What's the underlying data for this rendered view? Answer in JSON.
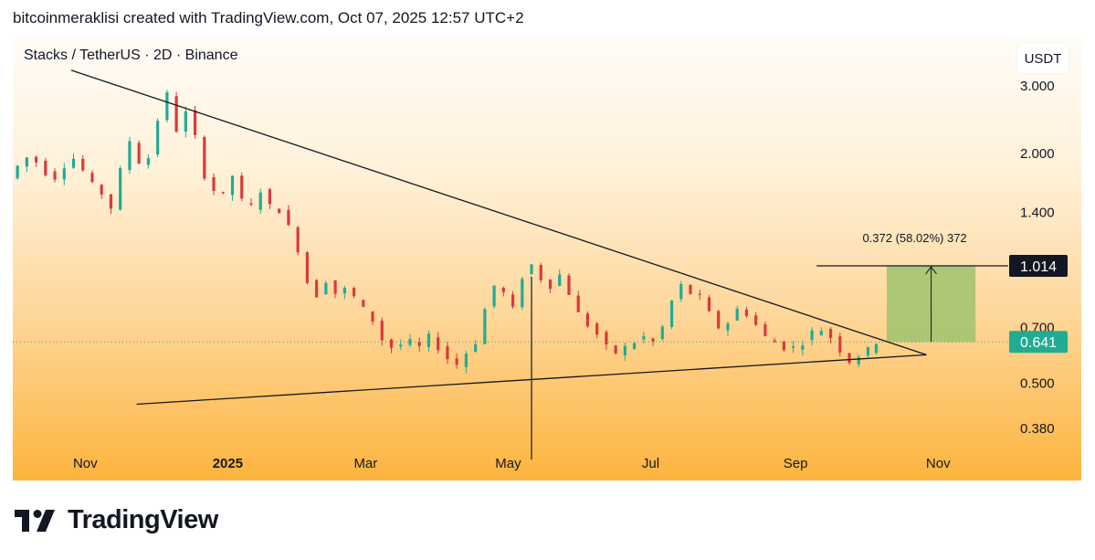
{
  "header": {
    "text": "bitcoinmeraklisi created with TradingView.com, Oct 07, 2025 12:57 UTC+2"
  },
  "symbol": {
    "text": "Stacks / TetherUS · 2D · Binance"
  },
  "currency": {
    "label": "USDT"
  },
  "brand": {
    "name": "TradingView",
    "icon": "tradingview-logo-icon"
  },
  "colors": {
    "up": "#22ab94",
    "down": "#d93a3a",
    "line": "#131722",
    "accent": "#22ab94",
    "measure_fill": "#9ec36d"
  },
  "chart_data": {
    "type": "candlestick",
    "title": "",
    "x_axis": {
      "type": "date",
      "range": [
        "2024-10-01",
        "2025-12-01"
      ],
      "ticks": [
        {
          "label": "Nov",
          "date": "2024-11-01",
          "bold": false
        },
        {
          "label": "2025",
          "date": "2025-01-01",
          "bold": true
        },
        {
          "label": "Mar",
          "date": "2025-03-01",
          "bold": false
        },
        {
          "label": "May",
          "date": "2025-05-01",
          "bold": false
        },
        {
          "label": "Jul",
          "date": "2025-07-01",
          "bold": false
        },
        {
          "label": "Sep",
          "date": "2025-09-01",
          "bold": false
        },
        {
          "label": "Nov",
          "date": "2025-11-01",
          "bold": false
        }
      ]
    },
    "y_axis": {
      "scale": "log",
      "unit": "USDT",
      "range": [
        0.3,
        4.0
      ],
      "ticks": [
        {
          "label": "3.000",
          "value": 3.0
        },
        {
          "label": "2.000",
          "value": 2.0
        },
        {
          "label": "1.400",
          "value": 1.4
        },
        {
          "label": "0.700",
          "value": 0.7
        },
        {
          "label": "0.500",
          "value": 0.5
        },
        {
          "label": "0.380",
          "value": 0.38
        }
      ]
    },
    "close_series": [
      [
        "2024-10-01",
        1.72
      ],
      [
        "2024-10-05",
        1.85
      ],
      [
        "2024-10-09",
        1.95
      ],
      [
        "2024-10-13",
        1.9
      ],
      [
        "2024-10-17",
        1.78
      ],
      [
        "2024-10-21",
        1.73
      ],
      [
        "2024-10-25",
        1.86
      ],
      [
        "2024-10-29",
        1.94
      ],
      [
        "2024-11-02",
        1.8
      ],
      [
        "2024-11-06",
        1.65
      ],
      [
        "2024-11-10",
        1.57
      ],
      [
        "2024-11-14",
        1.44
      ],
      [
        "2024-11-18",
        1.8
      ],
      [
        "2024-11-22",
        2.16
      ],
      [
        "2024-11-26",
        1.9
      ],
      [
        "2024-11-30",
        1.95
      ],
      [
        "2024-12-04",
        2.45
      ],
      [
        "2024-12-08",
        2.85
      ],
      [
        "2024-12-12",
        2.3
      ],
      [
        "2024-12-16",
        2.55
      ],
      [
        "2024-12-20",
        2.2
      ],
      [
        "2024-12-24",
        1.75
      ],
      [
        "2024-12-28",
        1.6
      ],
      [
        "2025-01-01",
        1.55
      ],
      [
        "2025-01-05",
        1.75
      ],
      [
        "2025-01-09",
        1.5
      ],
      [
        "2025-01-13",
        1.45
      ],
      [
        "2025-01-17",
        1.6
      ],
      [
        "2025-01-21",
        1.45
      ],
      [
        "2025-01-25",
        1.42
      ],
      [
        "2025-01-29",
        1.28
      ],
      [
        "2025-02-02",
        1.12
      ],
      [
        "2025-02-06",
        0.92
      ],
      [
        "2025-02-10",
        0.85
      ],
      [
        "2025-02-14",
        0.93
      ],
      [
        "2025-02-18",
        0.86
      ],
      [
        "2025-02-22",
        0.88
      ],
      [
        "2025-02-26",
        0.84
      ],
      [
        "2025-03-02",
        0.78
      ],
      [
        "2025-03-06",
        0.73
      ],
      [
        "2025-03-10",
        0.65
      ],
      [
        "2025-03-14",
        0.62
      ],
      [
        "2025-03-18",
        0.63
      ],
      [
        "2025-03-22",
        0.64
      ],
      [
        "2025-03-26",
        0.62
      ],
      [
        "2025-03-30",
        0.66
      ],
      [
        "2025-04-03",
        0.62
      ],
      [
        "2025-04-07",
        0.58
      ],
      [
        "2025-04-11",
        0.56
      ],
      [
        "2025-04-15",
        0.6
      ],
      [
        "2025-04-19",
        0.64
      ],
      [
        "2025-04-23",
        0.78
      ],
      [
        "2025-04-27",
        0.9
      ],
      [
        "2025-05-01",
        0.86
      ],
      [
        "2025-05-05",
        0.78
      ],
      [
        "2025-05-09",
        0.95
      ],
      [
        "2025-05-13",
        1.02
      ],
      [
        "2025-05-17",
        0.94
      ],
      [
        "2025-05-21",
        0.9
      ],
      [
        "2025-05-25",
        0.96
      ],
      [
        "2025-05-29",
        0.86
      ],
      [
        "2025-06-02",
        0.76
      ],
      [
        "2025-06-06",
        0.71
      ],
      [
        "2025-06-10",
        0.67
      ],
      [
        "2025-06-14",
        0.62
      ],
      [
        "2025-06-18",
        0.6
      ],
      [
        "2025-06-22",
        0.62
      ],
      [
        "2025-06-26",
        0.64
      ],
      [
        "2025-06-30",
        0.66
      ],
      [
        "2025-07-04",
        0.64
      ],
      [
        "2025-07-08",
        0.7
      ],
      [
        "2025-07-12",
        0.82
      ],
      [
        "2025-07-16",
        0.9
      ],
      [
        "2025-07-20",
        0.86
      ],
      [
        "2025-07-24",
        0.84
      ],
      [
        "2025-07-28",
        0.76
      ],
      [
        "2025-08-01",
        0.7
      ],
      [
        "2025-08-05",
        0.72
      ],
      [
        "2025-08-09",
        0.78
      ],
      [
        "2025-08-13",
        0.76
      ],
      [
        "2025-08-17",
        0.71
      ],
      [
        "2025-08-21",
        0.66
      ],
      [
        "2025-08-25",
        0.64
      ],
      [
        "2025-08-29",
        0.62
      ],
      [
        "2025-09-02",
        0.62
      ],
      [
        "2025-09-06",
        0.64
      ],
      [
        "2025-09-10",
        0.68
      ],
      [
        "2025-09-14",
        0.69
      ],
      [
        "2025-09-18",
        0.66
      ],
      [
        "2025-09-22",
        0.61
      ],
      [
        "2025-09-26",
        0.57
      ],
      [
        "2025-09-30",
        0.59
      ],
      [
        "2025-10-04",
        0.61
      ],
      [
        "2025-10-07",
        0.641
      ]
    ],
    "annotations": {
      "current_price": {
        "label": "0.641",
        "value": 0.641
      },
      "resistance_line": {
        "label": "1.014",
        "value": 1.014
      },
      "measure": {
        "text": "0.372 (58.02%) 372",
        "from": 0.641,
        "to": 1.014
      },
      "triangle_upper": [
        [
          "2024-10-26",
          3.3
        ],
        [
          "2025-10-27",
          0.593
        ]
      ],
      "triangle_lower": [
        [
          "2024-11-23",
          0.44
        ],
        [
          "2025-10-27",
          0.593
        ]
      ],
      "wick": {
        "date": "2025-05-11",
        "low": 0.315,
        "high": 0.95
      }
    }
  }
}
